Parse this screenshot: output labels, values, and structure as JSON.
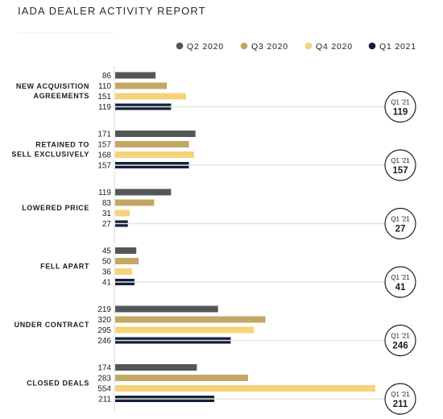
{
  "header": {
    "title": "IADA DEALER ACTIVITY REPORT"
  },
  "colors": {
    "Q2 2020": "#54575a",
    "Q3 2020": "#c4a765",
    "Q4 2020": "#f6d37b",
    "Q1 2021": "#15203a"
  },
  "chart_data": {
    "type": "bar",
    "orientation": "horizontal",
    "title": "",
    "xlabel": "",
    "ylabel": "",
    "xlim": [
      0,
      554
    ],
    "grid": false,
    "legend_position": "top-right",
    "categories": [
      [
        "NEW ACQUISITION",
        "AGREEMENTS"
      ],
      [
        "RETAINED TO",
        "SELL EXCLUSIVELY"
      ],
      [
        "LOWERED PRICE"
      ],
      [
        "FELL APART"
      ],
      [
        "UNDER CONTRACT"
      ],
      [
        "CLOSED DEALS"
      ]
    ],
    "series": [
      {
        "name": "Q2 2020",
        "values": [
          86,
          171,
          119,
          45,
          219,
          174
        ]
      },
      {
        "name": "Q3 2020",
        "values": [
          110,
          157,
          83,
          50,
          320,
          283
        ]
      },
      {
        "name": "Q4 2020",
        "values": [
          151,
          168,
          31,
          36,
          295,
          554
        ]
      },
      {
        "name": "Q1 2021",
        "values": [
          119,
          157,
          27,
          41,
          246,
          211
        ]
      }
    ],
    "callout": {
      "label": "Q1 '21",
      "values": [
        119,
        157,
        27,
        41,
        246,
        211
      ]
    }
  }
}
